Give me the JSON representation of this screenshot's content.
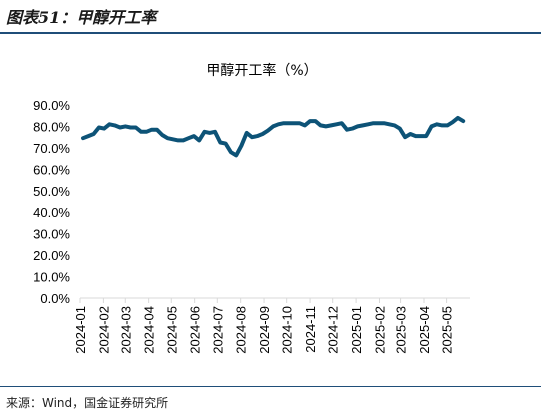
{
  "figure": {
    "title": "图表51：甲醇开工率",
    "source": "来源：Wind，国金证券研究所"
  },
  "colors": {
    "line": "#0d5377",
    "axis": "#d9d9d9",
    "rule": "#1f4e79"
  },
  "chart_data": {
    "type": "line",
    "title": "甲醇开工率（%）",
    "xlabel": "",
    "ylabel": "",
    "ylim": [
      0,
      90
    ],
    "y_ticks": [
      "0.0%",
      "10.0%",
      "20.0%",
      "30.0%",
      "40.0%",
      "50.0%",
      "60.0%",
      "70.0%",
      "80.0%",
      "90.0%"
    ],
    "y_tick_values": [
      0,
      10,
      20,
      30,
      40,
      50,
      60,
      70,
      80,
      90
    ],
    "x_ticks": [
      "2024-01",
      "2024-02",
      "2024-03",
      "2024-04",
      "2024-05",
      "2024-06",
      "2024-07",
      "2024-08",
      "2024-09",
      "2024-10",
      "2024-11",
      "2024-12",
      "2025-01",
      "2025-02",
      "2025-03",
      "2025-04",
      "2025-05"
    ],
    "grid": false,
    "legend": "none",
    "series": [
      {
        "x": [
          "2024-01-05",
          "2024-01-12",
          "2024-01-19",
          "2024-01-26",
          "2024-02-02",
          "2024-02-09",
          "2024-02-16",
          "2024-02-23",
          "2024-03-01",
          "2024-03-08",
          "2024-03-15",
          "2024-03-22",
          "2024-03-29",
          "2024-04-05",
          "2024-04-12",
          "2024-04-19",
          "2024-04-26",
          "2024-05-03",
          "2024-05-10",
          "2024-05-17",
          "2024-05-24",
          "2024-05-31",
          "2024-06-07",
          "2024-06-14",
          "2024-06-21",
          "2024-06-28",
          "2024-07-05",
          "2024-07-12",
          "2024-07-19",
          "2024-07-26",
          "2024-08-02",
          "2024-08-09",
          "2024-08-16",
          "2024-08-23",
          "2024-08-30",
          "2024-09-06",
          "2024-09-13",
          "2024-09-20",
          "2024-09-27",
          "2024-10-04",
          "2024-10-11",
          "2024-10-18",
          "2024-10-25",
          "2024-11-01",
          "2024-11-08",
          "2024-11-15",
          "2024-11-22",
          "2024-11-29",
          "2024-12-06",
          "2024-12-13",
          "2024-12-20",
          "2024-12-27",
          "2025-01-03",
          "2025-01-10",
          "2025-01-17",
          "2025-01-24",
          "2025-01-31",
          "2025-02-07",
          "2025-02-14",
          "2025-02-21",
          "2025-02-28",
          "2025-03-07",
          "2025-03-14",
          "2025-03-21",
          "2025-03-28",
          "2025-04-04",
          "2025-04-11",
          "2025-04-18",
          "2025-04-25",
          "2025-05-02",
          "2025-05-09",
          "2025-05-16",
          "2025-05-23"
        ],
        "values": [
          74.5,
          75.5,
          76.5,
          79.5,
          79.0,
          81.0,
          80.5,
          79.5,
          80.0,
          79.5,
          79.5,
          77.5,
          77.5,
          78.5,
          78.5,
          76.0,
          74.5,
          74.0,
          73.5,
          73.5,
          74.5,
          75.5,
          73.5,
          77.5,
          77.0,
          77.5,
          72.5,
          72.0,
          68.0,
          66.5,
          71.0,
          77.0,
          75.0,
          75.5,
          76.5,
          78.0,
          80.0,
          81.0,
          81.5,
          81.5,
          81.5,
          81.5,
          80.5,
          82.5,
          82.5,
          80.5,
          80.0,
          80.5,
          81.0,
          81.5,
          78.5,
          79.0,
          80.0,
          80.5,
          81.0,
          81.5,
          81.5,
          81.5,
          81.0,
          80.5,
          79.0,
          75.0,
          76.5,
          75.5,
          75.5,
          75.5,
          80.0,
          81.0,
          80.5,
          80.5,
          82.0,
          84.0,
          82.5
        ]
      }
    ]
  }
}
